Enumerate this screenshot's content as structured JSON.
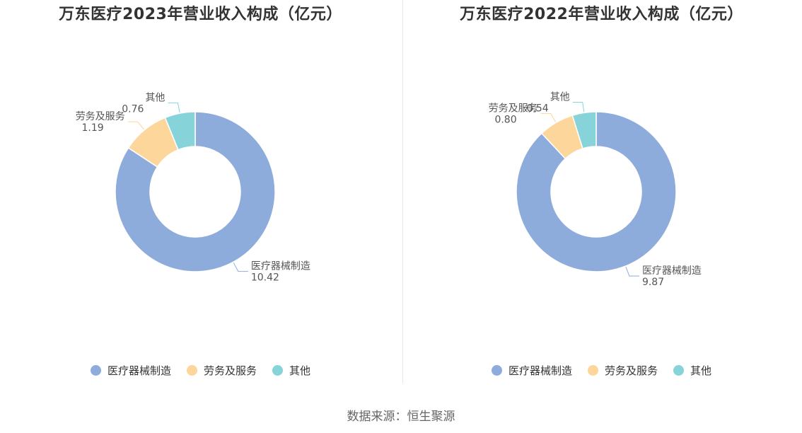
{
  "colors": {
    "manufacturing": "#8eacdb",
    "services": "#fcd69b",
    "other": "#86d3d9"
  },
  "chart_data": [
    {
      "type": "pie",
      "title": "万东医疗2023年营业收入构成（亿元）",
      "categories": [
        "医疗器械制造",
        "劳务及服务",
        "其他"
      ],
      "values": [
        10.42,
        1.19,
        0.76
      ],
      "value_labels": [
        "10.42",
        "1.19",
        "0.76"
      ],
      "legend": "bottom",
      "donut": true
    },
    {
      "type": "pie",
      "title": "万东医疗2022年营业收入构成（亿元）",
      "categories": [
        "医疗器械制造",
        "劳务及服务",
        "其他"
      ],
      "values": [
        9.87,
        0.8,
        0.54
      ],
      "value_labels": [
        "9.87",
        "0.80",
        "0.54"
      ],
      "legend": "bottom",
      "donut": true
    }
  ],
  "footer": {
    "source": "数据来源：恒生聚源"
  }
}
